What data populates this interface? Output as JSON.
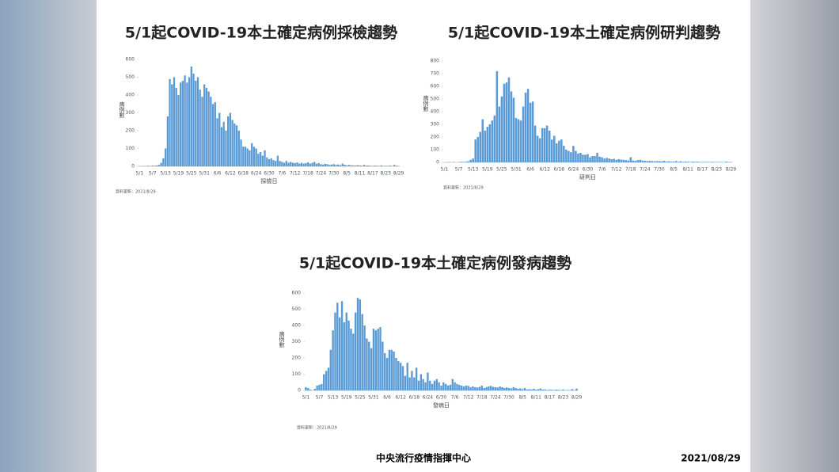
{
  "chart_data": [
    {
      "type": "bar",
      "title": "5/1起COVID-19本土確定病例採檢趨勢",
      "y_label": "病例數",
      "x_label": "採檢日",
      "source": "資料更新：2021/8/29",
      "color": "#5b9bd5",
      "categories": [
        "5/1",
        null,
        null,
        null,
        null,
        null,
        "5/7",
        null,
        null,
        null,
        null,
        null,
        "5/13",
        null,
        null,
        null,
        null,
        null,
        "5/19",
        null,
        null,
        null,
        null,
        null,
        "5/25",
        null,
        null,
        null,
        null,
        null,
        "5/31",
        null,
        null,
        null,
        null,
        null,
        "6/6",
        null,
        null,
        null,
        null,
        null,
        "6/12",
        null,
        null,
        null,
        null,
        null,
        "6/18",
        null,
        null,
        null,
        null,
        null,
        "6/24",
        null,
        null,
        null,
        null,
        null,
        "6/30",
        null,
        null,
        null,
        null,
        null,
        "7/6",
        null,
        null,
        null,
        null,
        null,
        "7/12",
        null,
        null,
        null,
        null,
        null,
        "7/18",
        null,
        null,
        null,
        null,
        null,
        "7/24",
        null,
        null,
        null,
        null,
        null,
        "7/30",
        null,
        null,
        null,
        null,
        null,
        "8/5",
        null,
        null,
        null,
        null,
        null,
        "8/11",
        null,
        null,
        null,
        null,
        null,
        "8/17",
        null,
        null,
        null,
        null,
        null,
        "8/23",
        null,
        null,
        null,
        null,
        null,
        "8/29"
      ],
      "values": [
        1,
        0,
        2,
        1,
        3,
        2,
        4,
        3,
        5,
        8,
        20,
        45,
        100,
        280,
        490,
        460,
        500,
        440,
        400,
        470,
        480,
        510,
        470,
        500,
        560,
        520,
        480,
        500,
        430,
        390,
        460,
        440,
        420,
        390,
        350,
        360,
        270,
        300,
        220,
        250,
        200,
        280,
        300,
        260,
        240,
        230,
        200,
        150,
        110,
        110,
        100,
        90,
        130,
        110,
        100,
        70,
        80,
        60,
        90,
        50,
        40,
        45,
        35,
        30,
        60,
        30,
        25,
        20,
        30,
        20,
        25,
        20,
        18,
        22,
        15,
        20,
        15,
        18,
        22,
        15,
        20,
        25,
        15,
        18,
        12,
        10,
        14,
        12,
        8,
        10,
        12,
        8,
        10,
        6,
        15,
        9,
        5,
        8,
        6,
        5,
        4,
        6,
        5,
        3,
        8,
        4,
        5,
        3,
        2,
        4,
        3,
        2,
        5,
        2,
        3,
        2,
        4,
        1,
        8,
        3,
        2
      ],
      "ylim": [
        0,
        600
      ],
      "yticks": [
        0,
        100,
        200,
        300,
        400,
        500,
        600
      ]
    },
    {
      "type": "bar",
      "title": "5/1起COVID-19本土確定病例研判趨勢",
      "y_label": "病例數",
      "x_label": "研判日",
      "source": "資料更新：2021/8/29",
      "color": "#5b9bd5",
      "categories": [
        "5/1",
        null,
        null,
        null,
        null,
        null,
        "5/7",
        null,
        null,
        null,
        null,
        null,
        "5/13",
        null,
        null,
        null,
        null,
        null,
        "5/19",
        null,
        null,
        null,
        null,
        null,
        "5/25",
        null,
        null,
        null,
        null,
        null,
        "5/31",
        null,
        null,
        null,
        null,
        null,
        "6/6",
        null,
        null,
        null,
        null,
        null,
        "6/12",
        null,
        null,
        null,
        null,
        null,
        "6/18",
        null,
        null,
        null,
        null,
        null,
        "6/24",
        null,
        null,
        null,
        null,
        null,
        "6/30",
        null,
        null,
        null,
        null,
        null,
        "7/6",
        null,
        null,
        null,
        null,
        null,
        "7/12",
        null,
        null,
        null,
        null,
        null,
        "7/18",
        null,
        null,
        null,
        null,
        null,
        "7/24",
        null,
        null,
        null,
        null,
        null,
        "7/30",
        null,
        null,
        null,
        null,
        null,
        "8/5",
        null,
        null,
        null,
        null,
        null,
        "8/11",
        null,
        null,
        null,
        null,
        null,
        "8/17",
        null,
        null,
        null,
        null,
        null,
        "8/23",
        null,
        null,
        null,
        null,
        null,
        "8/29"
      ],
      "values": [
        0,
        0,
        2,
        0,
        3,
        0,
        2,
        4,
        3,
        5,
        8,
        20,
        30,
        180,
        200,
        240,
        340,
        250,
        280,
        300,
        330,
        370,
        720,
        440,
        520,
        620,
        630,
        670,
        560,
        510,
        350,
        340,
        330,
        440,
        550,
        580,
        470,
        480,
        290,
        210,
        190,
        270,
        270,
        290,
        250,
        180,
        210,
        150,
        170,
        180,
        130,
        100,
        90,
        80,
        130,
        90,
        70,
        75,
        60,
        60,
        65,
        40,
        50,
        50,
        75,
        45,
        40,
        30,
        35,
        30,
        25,
        28,
        20,
        25,
        22,
        20,
        18,
        15,
        40,
        15,
        12,
        18,
        20,
        14,
        12,
        10,
        12,
        10,
        8,
        10,
        10,
        8,
        12,
        6,
        8,
        5,
        6,
        10,
        5,
        8,
        4,
        6,
        5,
        3,
        6,
        4,
        5,
        3,
        2,
        4,
        3,
        2,
        4,
        2,
        3,
        2,
        3,
        1,
        6,
        2,
        2
      ],
      "ylim": [
        0,
        800
      ],
      "yticks": [
        0,
        100,
        200,
        300,
        400,
        500,
        600,
        700,
        800
      ]
    },
    {
      "type": "bar",
      "title": "5/1起COVID-19本土確定病例發病趨勢",
      "y_label": "病例數",
      "x_label": "發病日",
      "source": "資料更新：2021/8/29",
      "color": "#5b9bd5",
      "categories": [
        "5/1",
        null,
        null,
        null,
        null,
        null,
        "5/7",
        null,
        null,
        null,
        null,
        null,
        "5/13",
        null,
        null,
        null,
        null,
        null,
        "5/19",
        null,
        null,
        null,
        null,
        null,
        "5/25",
        null,
        null,
        null,
        null,
        null,
        "5/31",
        null,
        null,
        null,
        null,
        null,
        "6/6",
        null,
        null,
        null,
        null,
        null,
        "6/12",
        null,
        null,
        null,
        null,
        null,
        "6/18",
        null,
        null,
        null,
        null,
        null,
        "6/24",
        null,
        null,
        null,
        null,
        null,
        "6/30",
        null,
        null,
        null,
        null,
        null,
        "7/6",
        null,
        null,
        null,
        null,
        null,
        "7/12",
        null,
        null,
        null,
        null,
        null,
        "7/18",
        null,
        null,
        null,
        null,
        null,
        "7/24",
        null,
        null,
        null,
        null,
        null,
        "7/30",
        null,
        null,
        null,
        null,
        null,
        "8/5",
        null,
        null,
        null,
        null,
        null,
        "8/11",
        null,
        null,
        null,
        null,
        null,
        "8/17",
        null,
        null,
        null,
        null,
        null,
        "8/23",
        null,
        null,
        null,
        null,
        null,
        "8/29"
      ],
      "values": [
        20,
        15,
        5,
        0,
        10,
        30,
        35,
        40,
        100,
        120,
        140,
        250,
        370,
        480,
        540,
        450,
        550,
        420,
        480,
        430,
        380,
        350,
        480,
        570,
        560,
        470,
        400,
        320,
        300,
        260,
        380,
        370,
        380,
        390,
        300,
        230,
        200,
        250,
        250,
        240,
        200,
        180,
        170,
        150,
        90,
        170,
        80,
        120,
        80,
        140,
        60,
        100,
        70,
        50,
        110,
        60,
        40,
        60,
        70,
        50,
        30,
        50,
        40,
        30,
        35,
        70,
        50,
        40,
        35,
        30,
        25,
        30,
        28,
        20,
        25,
        20,
        18,
        22,
        30,
        15,
        20,
        25,
        28,
        22,
        20,
        18,
        25,
        20,
        15,
        18,
        15,
        12,
        20,
        15,
        10,
        12,
        8,
        15,
        6,
        8,
        6,
        10,
        5,
        8,
        12,
        5,
        6,
        3,
        5,
        4,
        3,
        5,
        4,
        2,
        6,
        2,
        3,
        2,
        8,
        2,
        12
      ],
      "ylim": [
        0,
        600
      ],
      "yticks": [
        0,
        100,
        200,
        300,
        400,
        500,
        600
      ]
    }
  ],
  "footer": {
    "org": "中央流行疫情指揮中心",
    "date": "2021/08/29"
  }
}
